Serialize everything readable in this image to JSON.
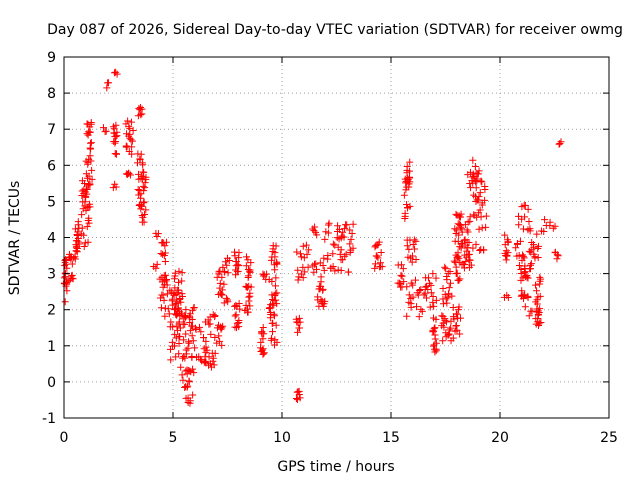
{
  "chart_data": {
    "type": "scatter",
    "title": "Day 087 of 2026, Sidereal Day-to-day VTEC variation (SDTVAR) for receiver owmg",
    "xlabel": "GPS time / hours",
    "ylabel": "SDTVAR / TECUs",
    "xlim": [
      0,
      25
    ],
    "ylim": [
      -1,
      9
    ],
    "xticks": [
      0,
      5,
      10,
      15,
      20,
      25
    ],
    "yticks": [
      -1,
      0,
      1,
      2,
      3,
      4,
      5,
      6,
      7,
      8,
      9
    ],
    "grid": true,
    "marker": "+",
    "color": "#ff0000",
    "series": [
      {
        "name": "SDTVAR",
        "clusters": [
          {
            "x": [
              0.0,
              0.15
            ],
            "y": [
              2.2,
              3.4
            ]
          },
          {
            "x": [
              0.2,
              0.45
            ],
            "y": [
              2.7,
              3.6
            ]
          },
          {
            "x": [
              0.5,
              0.7
            ],
            "y": [
              3.2,
              4.5
            ]
          },
          {
            "x": [
              0.75,
              1.2
            ],
            "y": [
              3.7,
              5.6
            ]
          },
          {
            "x": [
              1.0,
              1.3
            ],
            "y": [
              5.3,
              7.2
            ]
          },
          {
            "x": [
              1.8,
              1.95
            ],
            "y": [
              6.9,
              7.1
            ]
          },
          {
            "x": [
              1.95,
              2.05
            ],
            "y": [
              8.1,
              8.3
            ]
          },
          {
            "x": [
              2.3,
              2.45
            ],
            "y": [
              8.4,
              8.6
            ]
          },
          {
            "x": [
              2.25,
              2.45
            ],
            "y": [
              6.3,
              7.2
            ]
          },
          {
            "x": [
              2.25,
              2.4
            ],
            "y": [
              5.35,
              5.5
            ]
          },
          {
            "x": [
              2.8,
              3.2
            ],
            "y": [
              6.2,
              7.3
            ]
          },
          {
            "x": [
              2.85,
              3.05
            ],
            "y": [
              5.6,
              5.9
            ]
          },
          {
            "x": [
              3.4,
              3.6
            ],
            "y": [
              7.3,
              7.7
            ]
          },
          {
            "x": [
              3.35,
              3.7
            ],
            "y": [
              5.6,
              6.4
            ]
          },
          {
            "x": [
              3.4,
              3.8
            ],
            "y": [
              4.2,
              5.8
            ]
          },
          {
            "x": [
              4.1,
              4.3
            ],
            "y": [
              3.1,
              3.3
            ]
          },
          {
            "x": [
              4.2,
              4.35
            ],
            "y": [
              4.0,
              4.2
            ]
          },
          {
            "x": [
              4.45,
              4.7
            ],
            "y": [
              3.3,
              3.9
            ]
          },
          {
            "x": [
              4.4,
              4.8
            ],
            "y": [
              1.8,
              3.0
            ]
          },
          {
            "x": [
              4.8,
              5.35
            ],
            "y": [
              0.6,
              2.7
            ]
          },
          {
            "x": [
              5.0,
              5.5
            ],
            "y": [
              1.5,
              3.1
            ]
          },
          {
            "x": [
              5.3,
              6.0
            ],
            "y": [
              0.0,
              2.1
            ]
          },
          {
            "x": [
              5.5,
              5.95
            ],
            "y": [
              -0.6,
              0.7
            ]
          },
          {
            "x": [
              5.8,
              6.6
            ],
            "y": [
              0.5,
              1.6
            ]
          },
          {
            "x": [
              6.4,
              7.0
            ],
            "y": [
              0.4,
              1.9
            ]
          },
          {
            "x": [
              7.0,
              7.3
            ],
            "y": [
              1.0,
              1.6
            ]
          },
          {
            "x": [
              7.0,
              7.6
            ],
            "y": [
              2.0,
              3.5
            ]
          },
          {
            "x": [
              7.8,
              8.1
            ],
            "y": [
              1.5,
              2.3
            ]
          },
          {
            "x": [
              7.8,
              8.05
            ],
            "y": [
              2.9,
              3.7
            ]
          },
          {
            "x": [
              8.3,
              8.6
            ],
            "y": [
              1.9,
              3.5
            ]
          },
          {
            "x": [
              9.0,
              9.2
            ],
            "y": [
              0.7,
              1.6
            ]
          },
          {
            "x": [
              9.1,
              9.3
            ],
            "y": [
              2.8,
              3.1
            ]
          },
          {
            "x": [
              9.4,
              9.8
            ],
            "y": [
              1.0,
              2.9
            ]
          },
          {
            "x": [
              9.5,
              9.8
            ],
            "y": [
              3.0,
              3.8
            ]
          },
          {
            "x": [
              10.65,
              10.85
            ],
            "y": [
              -0.5,
              -0.1
            ]
          },
          {
            "x": [
              10.65,
              10.85
            ],
            "y": [
              1.3,
              1.8
            ]
          },
          {
            "x": [
              10.6,
              11.3
            ],
            "y": [
              2.8,
              3.8
            ]
          },
          {
            "x": [
              11.4,
              11.6
            ],
            "y": [
              3.0,
              3.3
            ]
          },
          {
            "x": [
              11.4,
              11.6
            ],
            "y": [
              4.0,
              4.3
            ]
          },
          {
            "x": [
              11.6,
              12.0
            ],
            "y": [
              2.0,
              3.3
            ]
          },
          {
            "x": [
              11.9,
              12.8
            ],
            "y": [
              3.0,
              4.4
            ]
          },
          {
            "x": [
              12.6,
              13.3
            ],
            "y": [
              3.0,
              4.4
            ]
          },
          {
            "x": [
              14.2,
              14.6
            ],
            "y": [
              3.0,
              3.9
            ]
          },
          {
            "x": [
              15.3,
              15.6
            ],
            "y": [
              2.6,
              3.3
            ]
          },
          {
            "x": [
              15.6,
              15.9
            ],
            "y": [
              4.5,
              6.1
            ]
          },
          {
            "x": [
              15.7,
              16.2
            ],
            "y": [
              3.3,
              4.1
            ]
          },
          {
            "x": [
              15.6,
              16.6
            ],
            "y": [
              1.8,
              3.1
            ]
          },
          {
            "x": [
              16.5,
              17.1
            ],
            "y": [
              2.0,
              3.0
            ]
          },
          {
            "x": [
              16.9,
              17.1
            ],
            "y": [
              0.8,
              1.8
            ]
          },
          {
            "x": [
              17.3,
              17.8
            ],
            "y": [
              1.0,
              3.2
            ]
          },
          {
            "x": [
              17.8,
              18.2
            ],
            "y": [
              1.2,
              2.1
            ]
          },
          {
            "x": [
              17.9,
              18.3
            ],
            "y": [
              2.4,
              4.7
            ]
          },
          {
            "x": [
              18.3,
              18.7
            ],
            "y": [
              3.0,
              4.6
            ]
          },
          {
            "x": [
              18.5,
              19.1
            ],
            "y": [
              5.2,
              6.2
            ]
          },
          {
            "x": [
              18.7,
              19.4
            ],
            "y": [
              3.6,
              5.7
            ]
          },
          {
            "x": [
              20.2,
              20.4
            ],
            "y": [
              2.3,
              2.5
            ]
          },
          {
            "x": [
              20.2,
              20.4
            ],
            "y": [
              3.3,
              4.1
            ]
          },
          {
            "x": [
              20.7,
              21.2
            ],
            "y": [
              3.0,
              3.9
            ]
          },
          {
            "x": [
              20.8,
              21.4
            ],
            "y": [
              4.2,
              4.9
            ]
          },
          {
            "x": [
              20.9,
              21.5
            ],
            "y": [
              1.8,
              3.3
            ]
          },
          {
            "x": [
              21.3,
              21.8
            ],
            "y": [
              3.4,
              4.3
            ]
          },
          {
            "x": [
              21.6,
              21.9
            ],
            "y": [
              1.4,
              2.9
            ]
          },
          {
            "x": [
              21.8,
              22.6
            ],
            "y": [
              4.1,
              4.5
            ]
          },
          {
            "x": [
              22.5,
              22.7
            ],
            "y": [
              3.3,
              3.6
            ]
          },
          {
            "x": [
              22.7,
              22.8
            ],
            "y": [
              6.5,
              6.7
            ]
          }
        ]
      }
    ]
  }
}
